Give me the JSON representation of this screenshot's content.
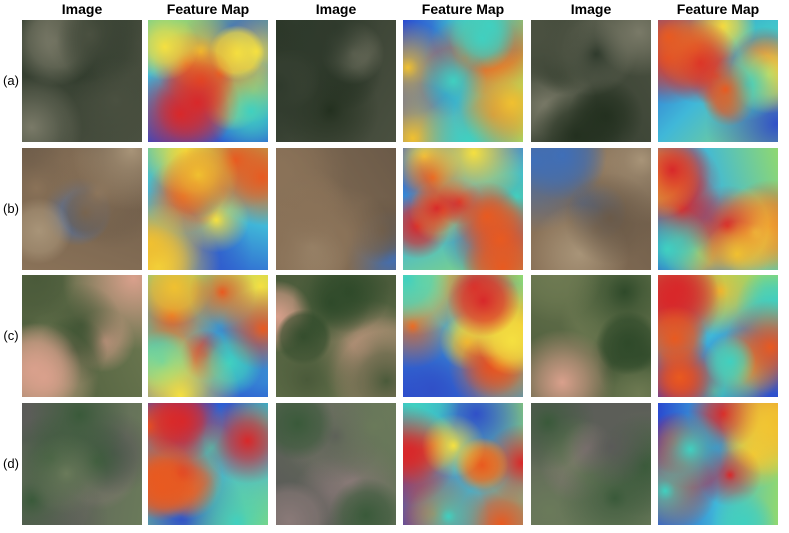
{
  "columns": [
    "Image",
    "Feature Map",
    "Image",
    "Feature Map",
    "Image",
    "Feature Map"
  ],
  "rows": [
    "(a)",
    "(b)",
    "(c)",
    "(d)"
  ]
}
